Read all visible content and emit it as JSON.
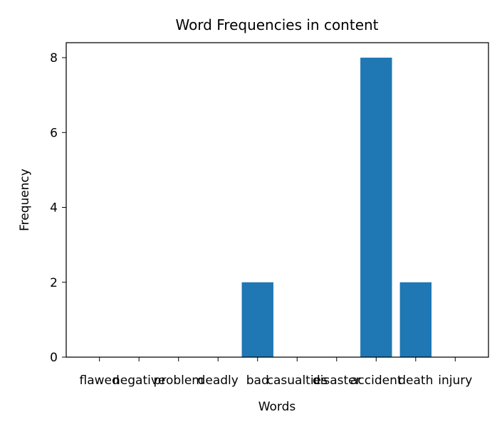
{
  "chart_data": {
    "type": "bar",
    "title": "Word Frequencies in content",
    "xlabel": "Words",
    "ylabel": "Frequency",
    "categories": [
      "flawed",
      "negative",
      "problem",
      "deadly",
      "bad",
      "casualties",
      "disaster",
      "accident",
      "death",
      "injury"
    ],
    "values": [
      0,
      0,
      0,
      0,
      2,
      0,
      0,
      8,
      2,
      0
    ],
    "ylim": [
      0,
      8.4
    ],
    "yticks": [
      0,
      2,
      4,
      6,
      8
    ],
    "bar_color": "#1f77b4",
    "grid": false,
    "legend": "none"
  }
}
